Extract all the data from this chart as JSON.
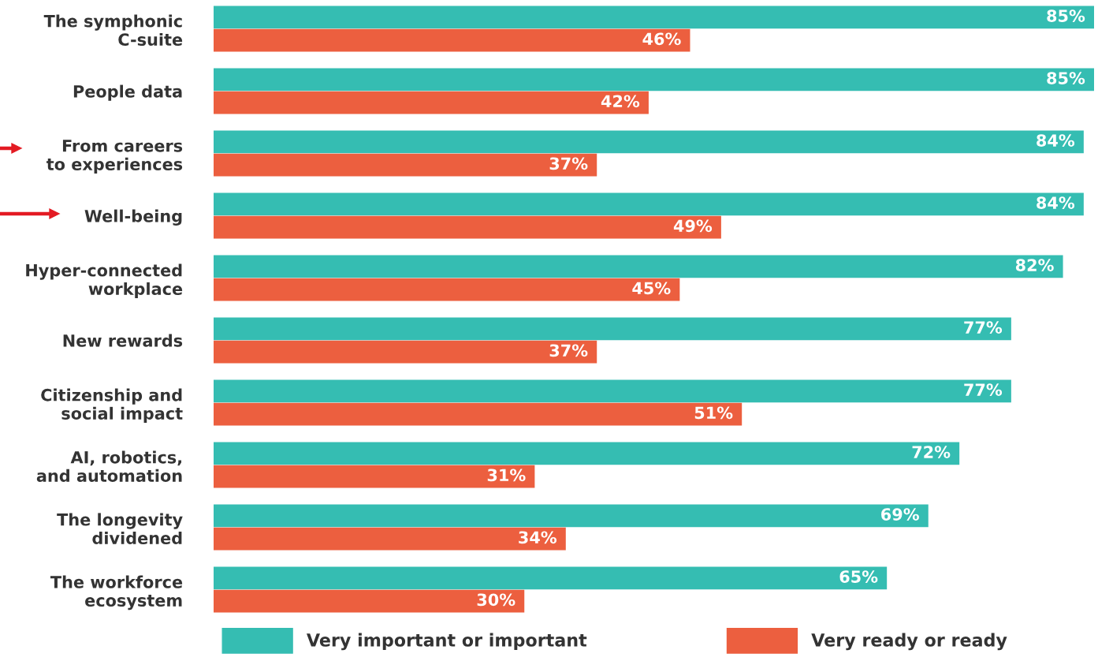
{
  "chart_data": {
    "type": "bar",
    "orientation": "horizontal",
    "categories": [
      "The symphonic\nC-suite",
      "People data",
      "From careers\nto experiences",
      "Well-being",
      "Hyper-connected\nworkplace",
      "New rewards",
      "Citizenship and\nsocial impact",
      "AI, robotics,\nand automation",
      "The longevity\ndividened",
      "The workforce\necosystem"
    ],
    "series": [
      {
        "name": "Very important or important",
        "color": "#35bdb2",
        "values": [
          85,
          85,
          84,
          84,
          82,
          77,
          77,
          72,
          69,
          65
        ],
        "value_labels": [
          "85%",
          "85%",
          "84%",
          "84%",
          "82%",
          "77%",
          "77%",
          "72%",
          "69%",
          "65%"
        ]
      },
      {
        "name": "Very ready or ready",
        "color": "#ec5f3f",
        "values": [
          46,
          42,
          37,
          49,
          45,
          37,
          51,
          31,
          34,
          30
        ],
        "value_labels": [
          "46%",
          "42%",
          "37%",
          "49%",
          "45%",
          "37%",
          "51%",
          "31%",
          "34%",
          "30%"
        ]
      }
    ],
    "xlim": [
      0,
      85
    ],
    "tick_labels": "y",
    "grid": false,
    "legend": "bottom"
  }
}
